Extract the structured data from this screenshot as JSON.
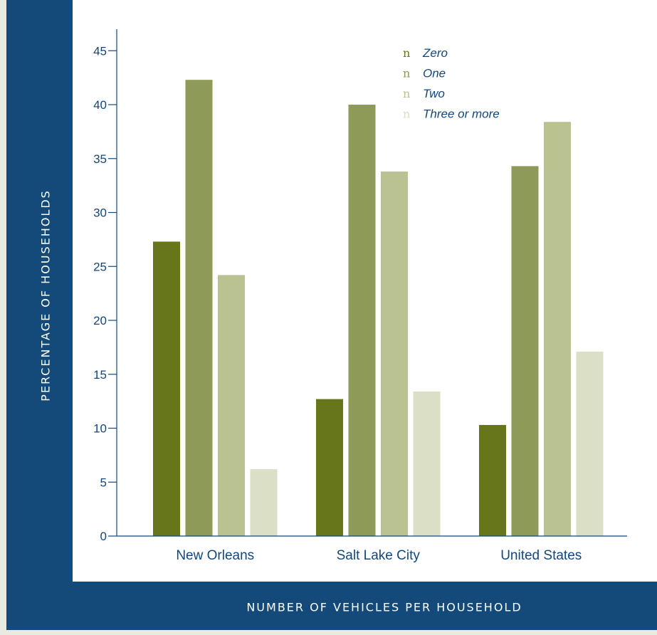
{
  "chart_data": {
    "type": "bar",
    "categories": [
      "New Orleans",
      "Salt Lake City",
      "United States"
    ],
    "series": [
      {
        "name": "Zero",
        "color": "#67761b",
        "values": [
          27.3,
          12.7,
          10.3
        ]
      },
      {
        "name": "One",
        "color": "#8e9a57",
        "values": [
          42.3,
          40.0,
          34.3
        ]
      },
      {
        "name": "Two",
        "color": "#bac292",
        "values": [
          24.2,
          33.8,
          38.4
        ]
      },
      {
        "name": "Three or more",
        "color": "#dbdfc6",
        "values": [
          6.2,
          13.4,
          17.1
        ]
      }
    ],
    "ylim": [
      0,
      47
    ],
    "yticks": [
      0,
      5,
      10,
      15,
      20,
      25,
      30,
      35,
      40,
      45
    ],
    "xlabel": "NUMBER OF VEHICLES PER HOUSEHOLD",
    "ylabel": "PERCENTAGE OF HOUSEHOLDS",
    "legend": {
      "position": "top-center",
      "marker": "n"
    },
    "grid": false
  },
  "colors": {
    "frame": "#134a79",
    "panel": "#ffffff",
    "axis": "#14467a",
    "page": "#e8ebe1"
  }
}
